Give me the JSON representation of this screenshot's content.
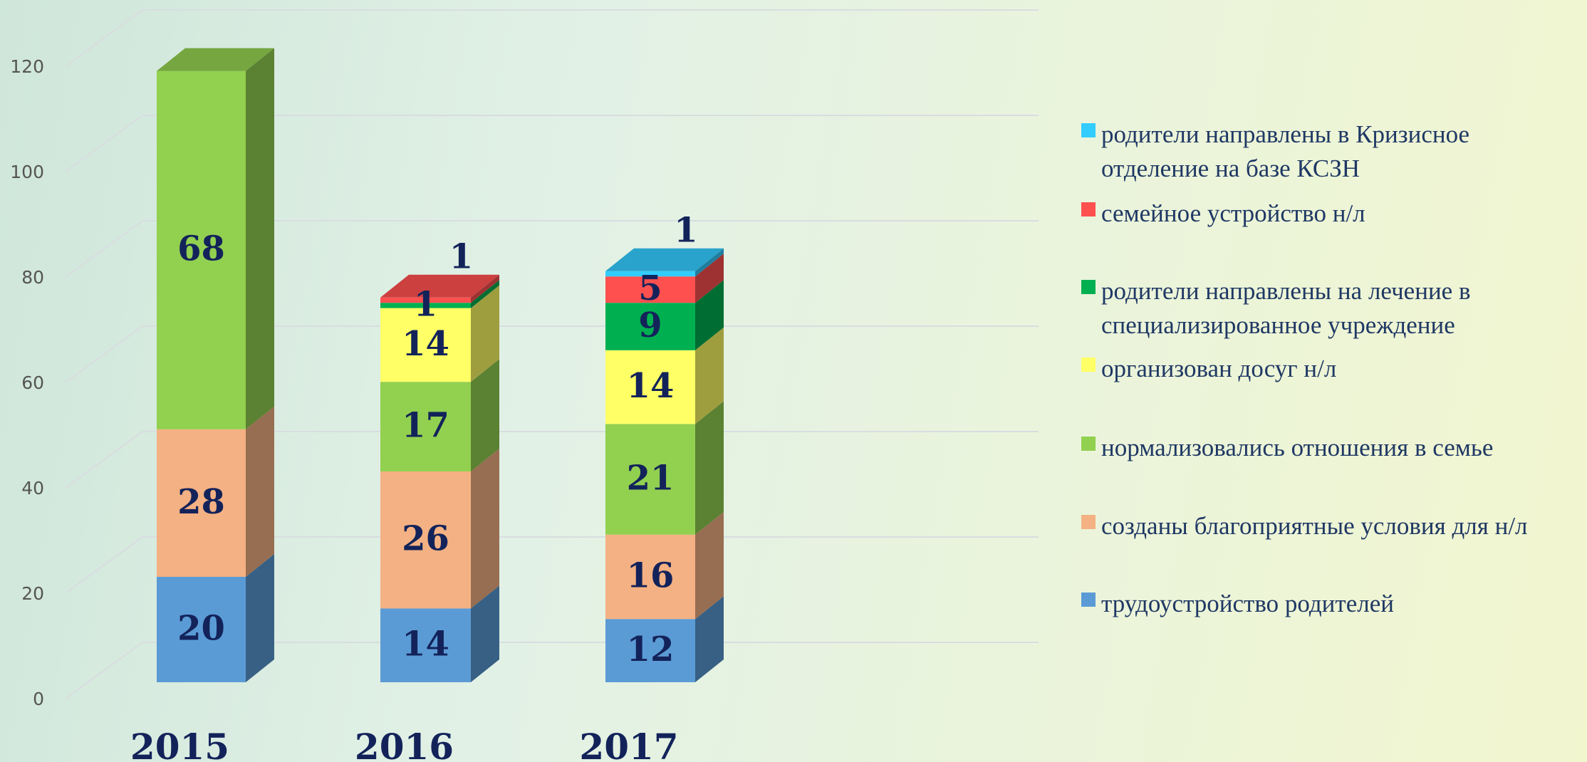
{
  "chart_data": {
    "type": "bar3d_stacked",
    "categories": [
      "2015",
      "2016",
      "2017"
    ],
    "series": [
      {
        "name": "трудоустройство родителей",
        "color": "#5b9bd5",
        "values": [
          20,
          14,
          12
        ]
      },
      {
        "name": "созданы благоприятные условия для н/л",
        "color": "#f4b183",
        "values": [
          28,
          26,
          16
        ]
      },
      {
        "name": "нормализовались отношения в семье",
        "color": "#92d050",
        "values": [
          68,
          17,
          21
        ]
      },
      {
        "name": "организован досуг н/л",
        "color": "#ffff66",
        "values": [
          null,
          14,
          14
        ]
      },
      {
        "name": "родители направлены на лечение в специализированное учреждение",
        "color": "#00b050",
        "values": [
          null,
          1,
          9
        ]
      },
      {
        "name": "семейное устройство н/л",
        "color": "#ff5050",
        "values": [
          null,
          1,
          5
        ]
      },
      {
        "name": "родители направлены в Кризисное отделение на базе КСЗН",
        "color": "#33ccff",
        "values": [
          null,
          null,
          1
        ]
      }
    ],
    "ylim": [
      0,
      120
    ],
    "yticks": [
      0,
      20,
      40,
      60,
      80,
      100,
      120
    ],
    "grid": true
  }
}
